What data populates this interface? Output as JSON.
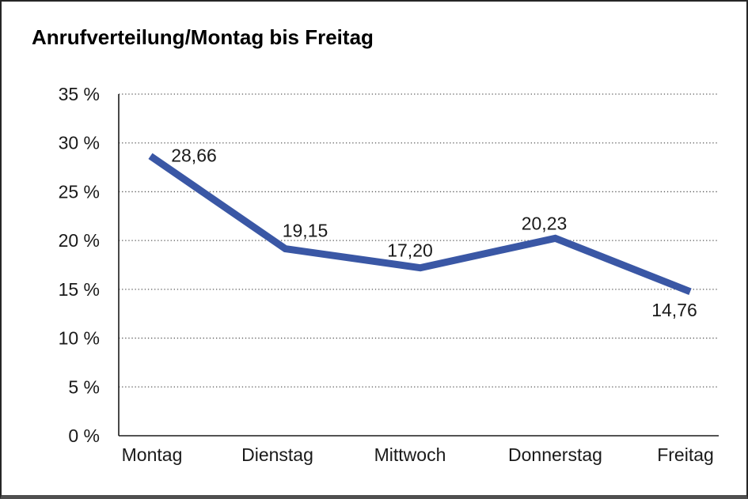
{
  "title": "Anrufverteilung/Montag bis Freitag",
  "chart_data": {
    "type": "line",
    "title": "Anrufverteilung/Montag bis Freitag",
    "categories": [
      "Montag",
      "Dienstag",
      "Mittwoch",
      "Donnerstag",
      "Freitag"
    ],
    "values": [
      28.66,
      19.15,
      17.2,
      20.23,
      14.76
    ],
    "value_labels": [
      "28,66",
      "19,15",
      "17,20",
      "20,23",
      "14,76"
    ],
    "xlabel": "",
    "ylabel": "",
    "ylim": [
      0,
      35
    ],
    "ytick_step": 5,
    "ytick_labels": [
      "0 %",
      "5 %",
      "10 %",
      "15 %",
      "20 %",
      "25 %",
      "30 %",
      "35 %"
    ],
    "grid": "horizontal-dotted",
    "legend": "none",
    "colors": {
      "line": "#3A57A5",
      "gridline": "#595959",
      "axis": "#1a1a1a",
      "text": "#1a1a1a",
      "background": "#ffffff"
    }
  }
}
